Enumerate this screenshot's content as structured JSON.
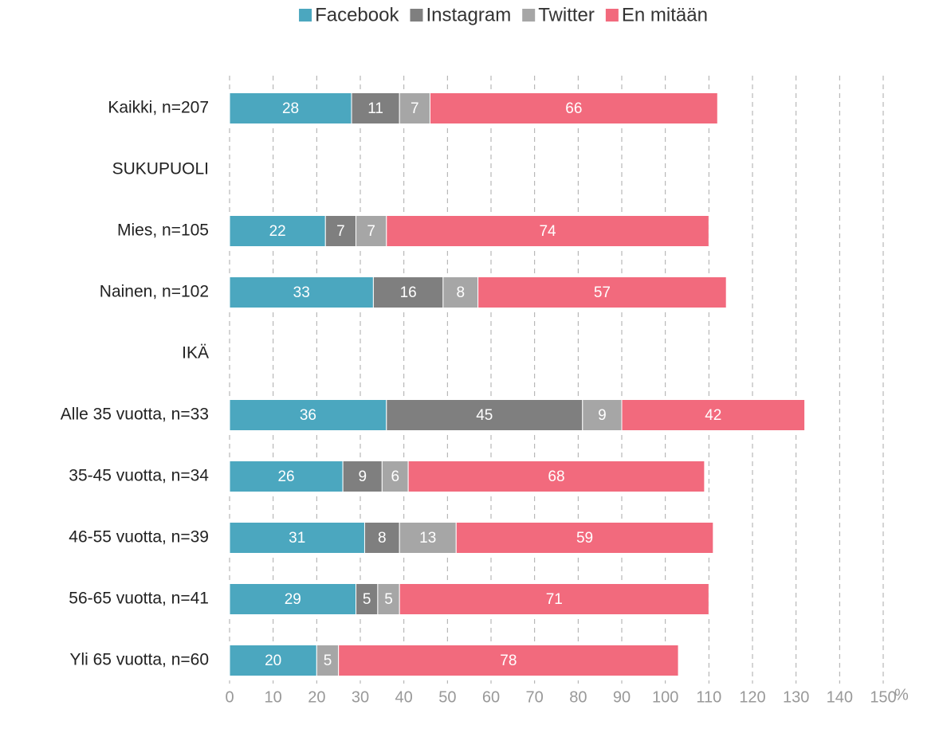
{
  "chart_data": {
    "type": "bar",
    "orientation": "horizontal",
    "stacked": true,
    "xlabel": "%",
    "categories": [
      "Kaikki, n=207",
      "SUKUPUOLI",
      "Mies, n=105",
      "Nainen, n=102",
      "IKÄ",
      "Alle 35 vuotta, n=33",
      "35-45 vuotta, n=34",
      "46-55 vuotta, n=39",
      "56-65 vuotta, n=41",
      "Yli 65 vuotta, n=60"
    ],
    "series": [
      {
        "name": "Facebook",
        "color": "#4ba7bf",
        "values": [
          28,
          null,
          22,
          33,
          null,
          36,
          26,
          31,
          29,
          20
        ]
      },
      {
        "name": "Instagram",
        "color": "#7f7f7f",
        "values": [
          11,
          null,
          7,
          16,
          null,
          45,
          9,
          8,
          5,
          null
        ]
      },
      {
        "name": "Twitter",
        "color": "#a6a6a6",
        "values": [
          7,
          null,
          7,
          8,
          null,
          9,
          6,
          13,
          5,
          5
        ]
      },
      {
        "name": "En mitään",
        "color": "#f26a7d",
        "values": [
          66,
          null,
          74,
          57,
          null,
          42,
          68,
          59,
          71,
          78
        ]
      }
    ],
    "xlim": [
      0,
      150
    ],
    "xticks": [
      0,
      10,
      20,
      30,
      40,
      50,
      60,
      70,
      80,
      90,
      100,
      110,
      120,
      130,
      140,
      150
    ],
    "grid": true,
    "legend": "top"
  }
}
